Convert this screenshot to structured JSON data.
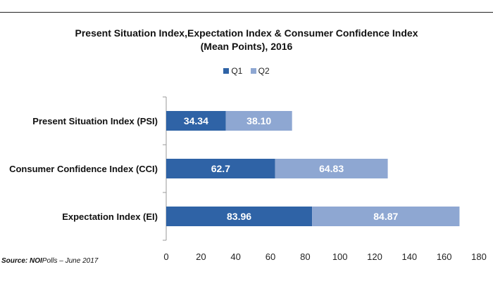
{
  "chart_data": {
    "type": "bar",
    "orientation": "horizontal",
    "stacked": true,
    "title_line1": "Present Situation Index,Expectation Index & Consumer Confidence Index",
    "title_line2": "(Mean Points), 2016",
    "categories": [
      "Present Situation Index (PSI)",
      "Consumer Confidence Index (CCI)",
      "Expectation Index (EI)"
    ],
    "series": [
      {
        "name": "Q1",
        "color": "#2f63a6",
        "values": [
          34.34,
          62.7,
          83.96
        ],
        "labels": [
          "34.34",
          "62.7",
          "83.96"
        ]
      },
      {
        "name": "Q2",
        "color": "#8ea7d2",
        "values": [
          38.1,
          64.83,
          84.87
        ],
        "labels": [
          "38.10",
          "64.83",
          "84.87"
        ]
      }
    ],
    "xlim": [
      0,
      180
    ],
    "xticks": [
      0,
      20,
      40,
      60,
      80,
      100,
      120,
      140,
      160,
      180
    ],
    "grid": false,
    "legend_position": "top-center"
  },
  "source": {
    "label": "Source:",
    "org_bold": "NOI",
    "org_rest": "Polls",
    "date": "– June 2017"
  }
}
